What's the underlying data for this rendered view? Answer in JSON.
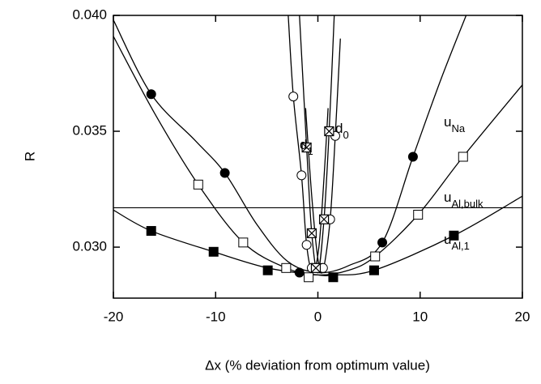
{
  "chart_data": {
    "type": "scatter",
    "x_label": "Δx (% deviation from optimum value)",
    "y_label": "R",
    "xlim": [
      -20,
      20
    ],
    "ylim": [
      0.0278,
      0.04
    ],
    "xticks": [
      -20,
      -10,
      0,
      10,
      20
    ],
    "yticks": [
      {
        "value": 0.03,
        "label": "0.030"
      },
      {
        "value": 0.035,
        "label": "0.035"
      },
      {
        "value": 0.04,
        "label": "0.040"
      }
    ],
    "reference_line": 0.0317,
    "color": "#000000",
    "series": [
      {
        "marker": "filled-circle",
        "label": {
          "text": "u",
          "sub": "Na"
        },
        "x": [
          -16.3,
          -9.1,
          -1.8,
          0.4,
          6.3,
          9.3
        ],
        "y": [
          0.0366,
          0.0332,
          0.0289,
          0.0291,
          0.0302,
          0.0339
        ],
        "curve_x": [
          -20,
          -16.3,
          -12,
          -9.1,
          -6,
          -3,
          0,
          3,
          6.3,
          9.3,
          12,
          14.5
        ],
        "curve_y": [
          0.0398,
          0.0366,
          0.0346,
          0.0332,
          0.031,
          0.0294,
          0.0289,
          0.0292,
          0.0302,
          0.0339,
          0.0372,
          0.04
        ]
      },
      {
        "marker": "open-square",
        "label": {
          "text": "u",
          "sub": "Al,bulk"
        },
        "x": [
          -11.7,
          -7.3,
          -3.1,
          -0.9,
          5.6,
          9.8,
          14.2
        ],
        "y": [
          0.0327,
          0.0302,
          0.0291,
          0.0287,
          0.0296,
          0.0314,
          0.0339
        ],
        "curve_x": [
          -20,
          -16,
          -11.7,
          -7.3,
          -3.1,
          0,
          3,
          5.6,
          9.8,
          14.2,
          20
        ],
        "curve_y": [
          0.0391,
          0.0358,
          0.0327,
          0.0302,
          0.0291,
          0.0288,
          0.029,
          0.0296,
          0.0314,
          0.0339,
          0.037
        ]
      },
      {
        "marker": "filled-square",
        "label": {
          "text": "u",
          "sub": "Al,1"
        },
        "x": [
          -16.3,
          -10.2,
          -4.9,
          1.5,
          5.5,
          13.3
        ],
        "y": [
          0.0307,
          0.0298,
          0.029,
          0.0287,
          0.029,
          0.0305
        ],
        "curve_x": [
          -20,
          -16.3,
          -10.2,
          -4.9,
          0,
          1.5,
          5.5,
          13.3,
          20
        ],
        "curve_y": [
          0.0316,
          0.0307,
          0.0298,
          0.0291,
          0.0288,
          0.0288,
          0.029,
          0.0305,
          0.0322
        ]
      },
      {
        "marker": "open-circle",
        "label": {
          "text": "d",
          "sub": "1"
        },
        "x": [
          -2.4,
          -1.6,
          -1.1,
          -0.6
        ],
        "y": [
          0.0365,
          0.0331,
          0.0301,
          0.0291
        ],
        "curve_x": [
          -2.9,
          -2.4,
          -1.6,
          -1.1,
          -0.5,
          0.1,
          0.6,
          1
        ],
        "curve_y": [
          0.04,
          0.0365,
          0.0331,
          0.0301,
          0.0289,
          0.03,
          0.033,
          0.036
        ]
      },
      {
        "marker": "open-circle",
        "label": {
          "text": "d",
          "sub": "0"
        },
        "x": [
          1.7,
          1.2,
          0.5
        ],
        "y": [
          0.0348,
          0.0312,
          0.0291
        ],
        "curve_x": [
          -1.2,
          -0.6,
          0,
          0.5,
          1.2,
          1.7,
          2.2
        ],
        "curve_y": [
          0.036,
          0.0322,
          0.0295,
          0.029,
          0.0312,
          0.0348,
          0.039
        ]
      },
      {
        "marker": "crossed-square",
        "x": [
          -1.1,
          -0.6,
          -0.2,
          0.6,
          1.1
        ],
        "y": [
          0.0343,
          0.0306,
          0.0291,
          0.0312,
          0.035
        ],
        "curve_x": [
          -1.8,
          -1.1,
          -0.6,
          0,
          0.6,
          1.1,
          1.6
        ],
        "curve_y": [
          0.04,
          0.0343,
          0.0306,
          0.0289,
          0.0312,
          0.035,
          0.04
        ]
      }
    ]
  }
}
